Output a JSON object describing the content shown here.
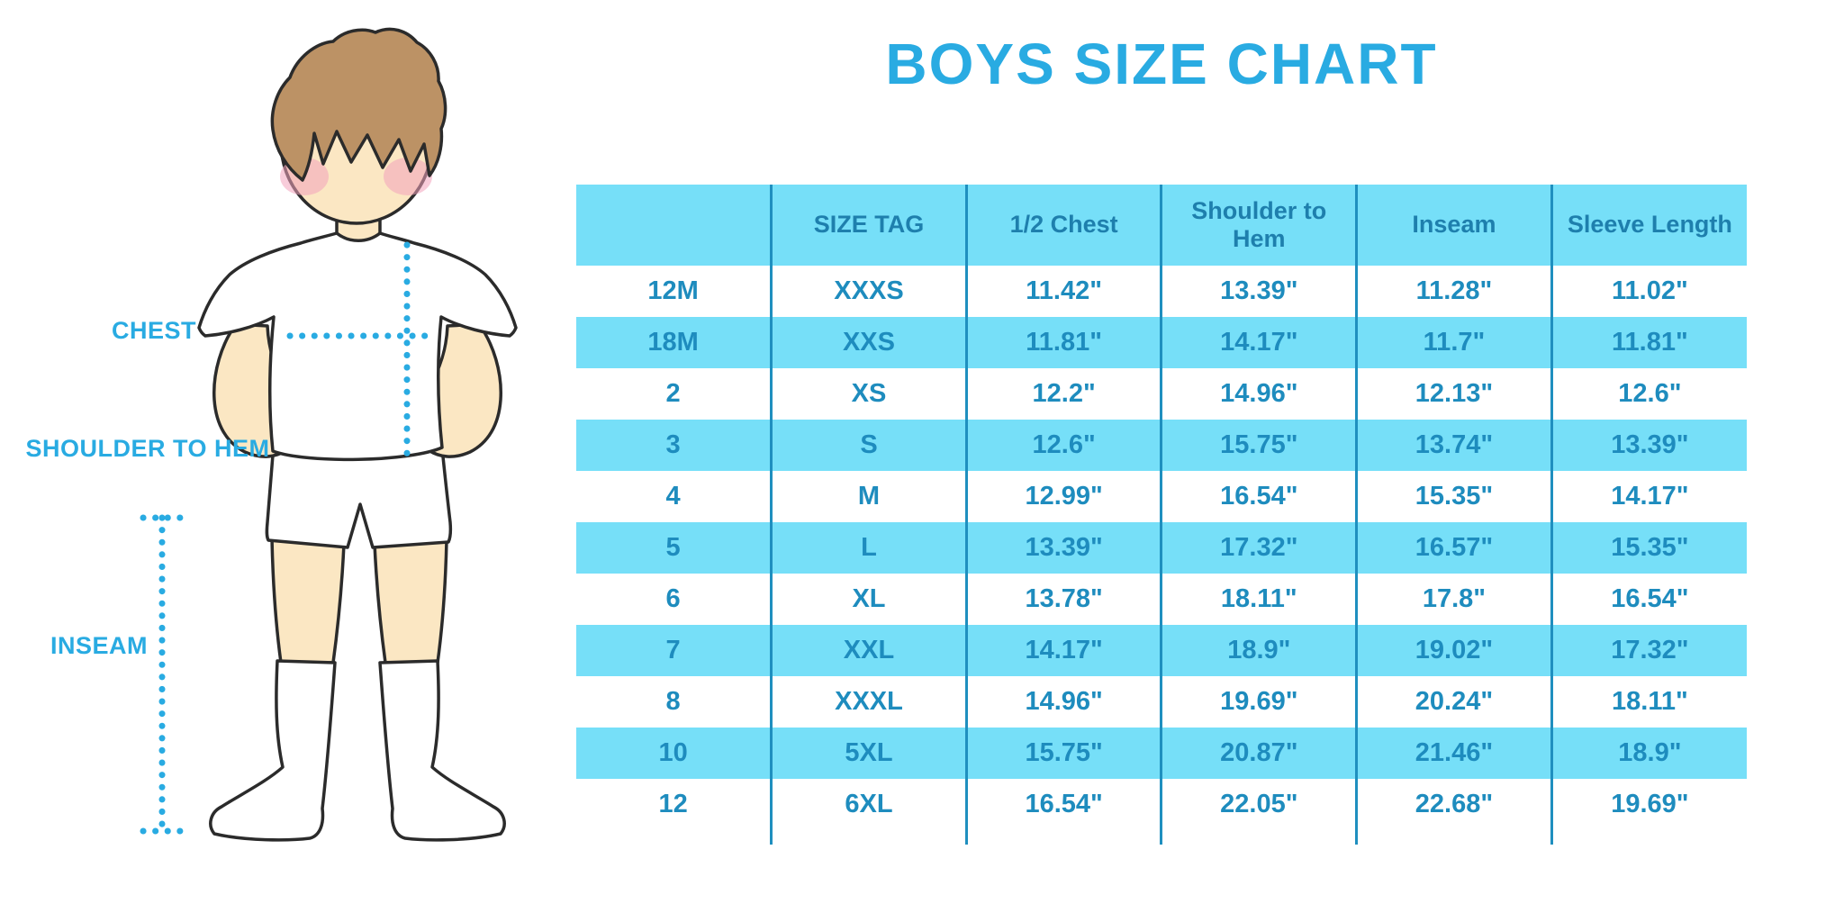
{
  "title": "BOYS SIZE CHART",
  "diagram": {
    "illustration": "boy-with-measurement-lines",
    "labels": {
      "chest": "CHEST",
      "shoulder_to_hem": "SHOULDER TO HEM",
      "inseam": "INSEAM"
    }
  },
  "colors": {
    "accent": "#29ABE2",
    "band": "#76DFF8",
    "header_text": "#1E7FAD",
    "cell_text": "#1E8CBE",
    "grid_line": "#1F8FBF",
    "skin": "#FBE7C3",
    "hair": "#BC9265",
    "cheek": "#F2A3BC",
    "outline": "#2B2B2B"
  },
  "chart_data": {
    "type": "table",
    "title": "BOYS SIZE CHART",
    "columns": [
      "",
      "SIZE TAG",
      "1/2 Chest",
      "Shoulder to Hem",
      "Inseam",
      "Sleeve Length"
    ],
    "rows": [
      [
        "12M",
        "XXXS",
        "11.42\"",
        "13.39\"",
        "11.28\"",
        "11.02\""
      ],
      [
        "18M",
        "XXS",
        "11.81\"",
        "14.17\"",
        "11.7\"",
        "11.81\""
      ],
      [
        "2",
        "XS",
        "12.2\"",
        "14.96\"",
        "12.13\"",
        "12.6\""
      ],
      [
        "3",
        "S",
        "12.6\"",
        "15.75\"",
        "13.74\"",
        "13.39\""
      ],
      [
        "4",
        "M",
        "12.99\"",
        "16.54\"",
        "15.35\"",
        "14.17\""
      ],
      [
        "5",
        "L",
        "13.39\"",
        "17.32\"",
        "16.57\"",
        "15.35\""
      ],
      [
        "6",
        "XL",
        "13.78\"",
        "18.11\"",
        "17.8\"",
        "16.54\""
      ],
      [
        "7",
        "XXL",
        "14.17\"",
        "18.9\"",
        "19.02\"",
        "17.32\""
      ],
      [
        "8",
        "XXXL",
        "14.96\"",
        "19.69\"",
        "20.24\"",
        "18.11\""
      ],
      [
        "10",
        "5XL",
        "15.75\"",
        "20.87\"",
        "21.46\"",
        "18.9\""
      ],
      [
        "12",
        "6XL",
        "16.54\"",
        "22.05\"",
        "22.68\"",
        "19.69\""
      ]
    ],
    "row_stripe_pattern": "white-blue-alternating",
    "units": "inches"
  }
}
